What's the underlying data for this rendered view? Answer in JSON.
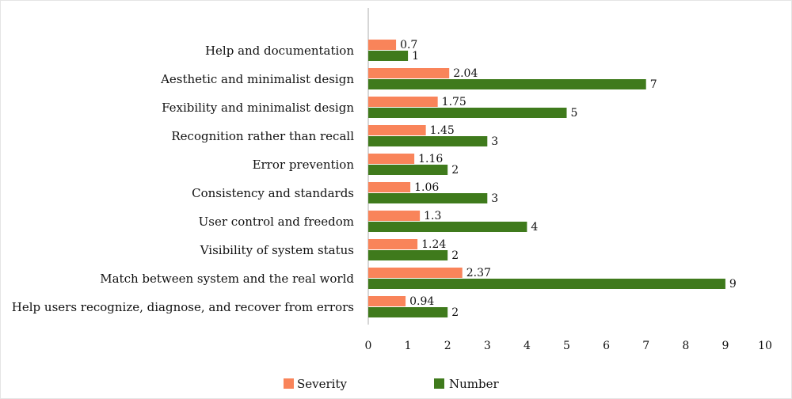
{
  "chart_data": {
    "type": "bar",
    "orientation": "horizontal",
    "categories": [
      "Help and documentation",
      "Aesthetic and minimalist design",
      "Fexibility and minimalist design",
      "Recognition rather than recall",
      "Error prevention",
      "Consistency and standards",
      "User control and freedom",
      "Visibility of system status",
      "Match between system and the real world",
      "Help users recognize, diagnose, and recover from errors"
    ],
    "series": [
      {
        "name": "Severity",
        "color": "#f9845a",
        "values": [
          0.7,
          2.04,
          1.75,
          1.45,
          1.16,
          1.06,
          1.3,
          1.24,
          2.37,
          0.94
        ],
        "labels": [
          "0.7",
          "2.04",
          "1.75",
          "1.45",
          "1.16",
          "1.06",
          "1.3",
          "1.24",
          "2.37",
          "0.94"
        ]
      },
      {
        "name": "Number",
        "color": "#3f7a1c",
        "values": [
          1,
          7,
          5,
          3,
          2,
          3,
          4,
          2,
          9,
          2
        ],
        "labels": [
          "1",
          "7",
          "5",
          "3",
          "2",
          "3",
          "4",
          "2",
          "9",
          "2"
        ]
      }
    ],
    "xlim": [
      0,
      10
    ],
    "xticks": [
      "0",
      "1",
      "2",
      "3",
      "4",
      "5",
      "6",
      "7",
      "8",
      "9",
      "10"
    ],
    "title": "",
    "xlabel": "",
    "ylabel": "",
    "grid": false,
    "legend": "bottom"
  }
}
